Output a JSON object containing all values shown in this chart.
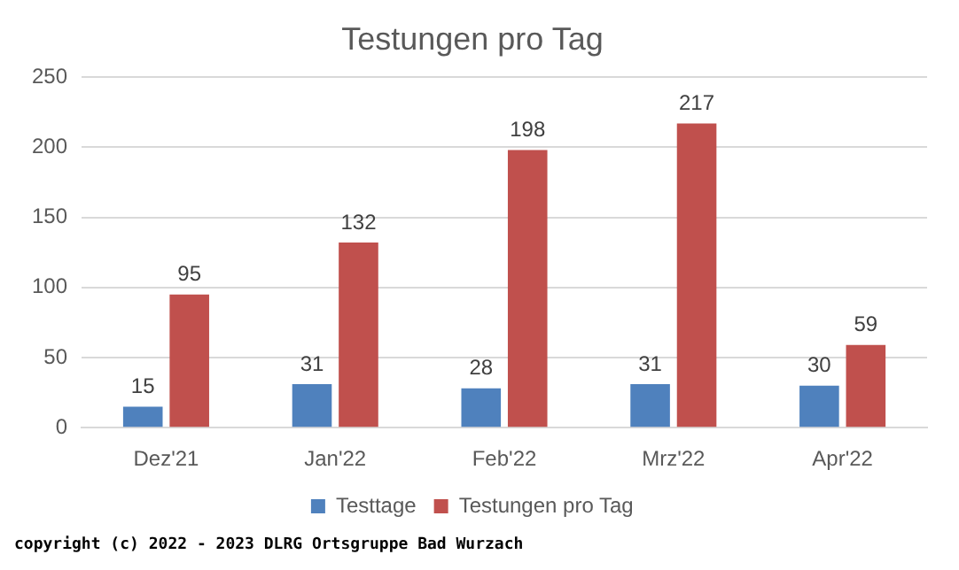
{
  "chart_data": {
    "type": "bar",
    "title": "Testungen pro Tag",
    "categories": [
      "Dez'21",
      "Jan'22",
      "Feb'22",
      "Mrz'22",
      "Apr'22"
    ],
    "series": [
      {
        "name": "Testtage",
        "color": "#4f81bd",
        "values": [
          15,
          31,
          28,
          31,
          30
        ]
      },
      {
        "name": "Testungen pro Tag",
        "color": "#c0504d",
        "values": [
          95,
          132,
          198,
          217,
          59
        ]
      }
    ],
    "ylim": [
      0,
      250
    ],
    "yticks": [
      0,
      50,
      100,
      150,
      200,
      250
    ],
    "grid": "y",
    "legend": "bottom",
    "data_labels": true,
    "annotations": [
      "copyright (c) 2022 - 2023 DLRG Ortsgruppe Bad Wurzach"
    ]
  }
}
